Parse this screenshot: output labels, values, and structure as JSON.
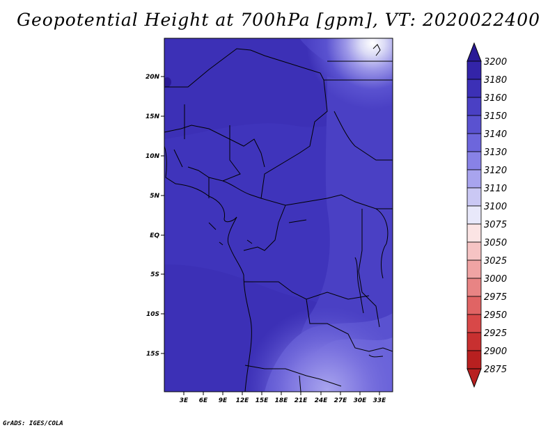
{
  "title": "Geopotential Height at 700hPa [gpm], VT: 2020022400",
  "credit": "GrADS: IGES/COLA",
  "map": {
    "lat_labels": [
      "20N",
      "15N",
      "10N",
      "5N",
      "EQ",
      "5S",
      "10S",
      "15S"
    ],
    "lon_labels": [
      "3E",
      "6E",
      "9E",
      "12E",
      "15E",
      "18E",
      "21E",
      "24E",
      "27E",
      "30E",
      "33E"
    ]
  },
  "colorbar": {
    "levels": [
      "3200",
      "3180",
      "3160",
      "3150",
      "3140",
      "3130",
      "3120",
      "3110",
      "3100",
      "3075",
      "3050",
      "3025",
      "3000",
      "2975",
      "2950",
      "2925",
      "2900",
      "2875"
    ],
    "colors": [
      "#2a1a96",
      "#3324a8",
      "#3c30b6",
      "#4a40c4",
      "#5a52d0",
      "#6d66dc",
      "#8882e6",
      "#a8a4ee",
      "#cac8f4",
      "#e8e8fa",
      "#fbe4e4",
      "#f6c4c4",
      "#f0a4a4",
      "#e88484",
      "#e06464",
      "#d84848",
      "#c83030",
      "#b82020"
    ]
  }
}
